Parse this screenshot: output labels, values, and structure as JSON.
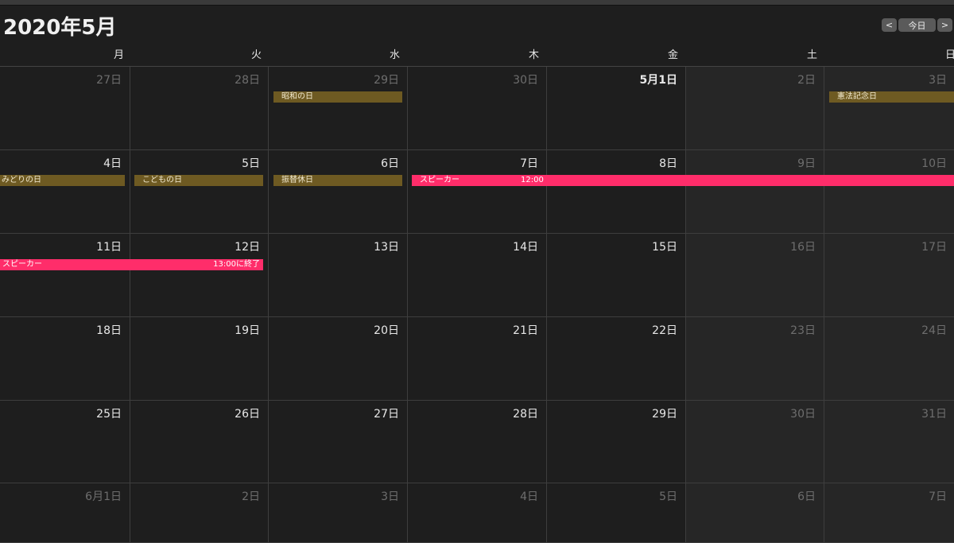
{
  "header": {
    "title": "2020年5月",
    "prev_label": "<",
    "today_label": "今日",
    "next_label": ">"
  },
  "weekdays": [
    "月",
    "火",
    "水",
    "木",
    "金",
    "土",
    "日"
  ],
  "weeks": [
    [
      "27日",
      "28日",
      "29日",
      "30日",
      "5月1日",
      "2日",
      "3日"
    ],
    [
      "4日",
      "5日",
      "6日",
      "7日",
      "8日",
      "9日",
      "10日"
    ],
    [
      "11日",
      "12日",
      "13日",
      "14日",
      "15日",
      "16日",
      "17日"
    ],
    [
      "18日",
      "19日",
      "20日",
      "21日",
      "22日",
      "23日",
      "24日"
    ],
    [
      "25日",
      "26日",
      "27日",
      "28日",
      "29日",
      "30日",
      "31日"
    ],
    [
      "6月1日",
      "2日",
      "3日",
      "4日",
      "5日",
      "6日",
      "7日"
    ]
  ],
  "events": {
    "showa_day": "昭和の日",
    "constitution_day": "憲法記念日",
    "greenery_day": "みどりの日",
    "childrens_day": "こどもの日",
    "substitute_holiday": "振替休日",
    "speaker_1": {
      "title": "スピーカー",
      "time": "12:00"
    },
    "speaker_2": {
      "title": "スピーカー",
      "time": "13:00に終了"
    }
  },
  "colors": {
    "background": "#1e1e1e",
    "holiday": "#6e5a22",
    "event": "#ff2d6a",
    "weekend": "#262626"
  }
}
